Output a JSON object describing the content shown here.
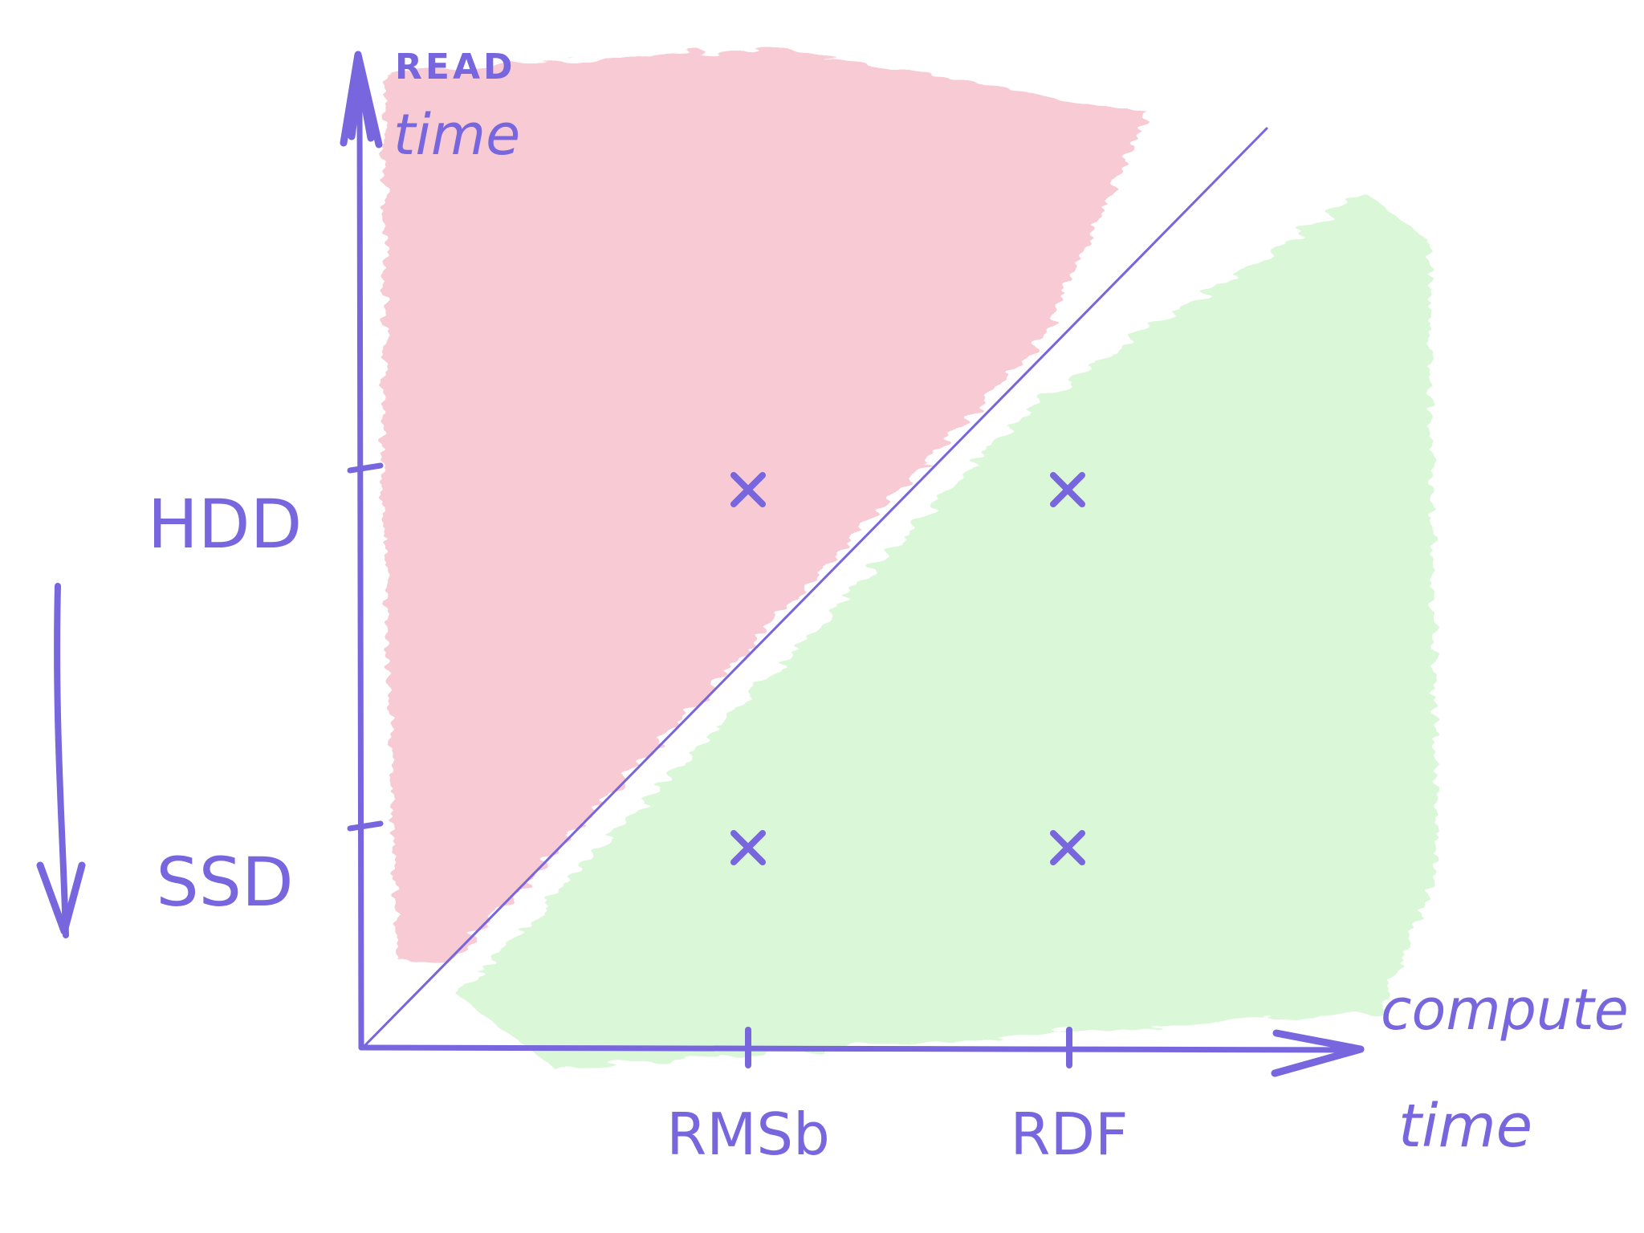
{
  "chart_data": {
    "type": "scatter",
    "title": "",
    "xlabel": [
      "compute",
      "time"
    ],
    "ylabel": [
      "READ",
      "time"
    ],
    "x_categories": [
      "RMSb",
      "RDF"
    ],
    "y_categories": [
      "SSD",
      "HDD"
    ],
    "points": [
      {
        "x": "RMSb",
        "y": "HDD",
        "marker": "x"
      },
      {
        "x": "RDF",
        "y": "HDD",
        "marker": "x"
      },
      {
        "x": "RMSb",
        "y": "SSD",
        "marker": "x"
      },
      {
        "x": "RDF",
        "y": "SSD",
        "marker": "x"
      }
    ],
    "reference_line": "diagonal",
    "regions": [
      {
        "side": "above-diagonal",
        "color": "#f4b6c4"
      },
      {
        "side": "below-diagonal",
        "color": "#cdf5c9"
      }
    ],
    "side_arrow": "down",
    "grid": false,
    "legend": "none"
  },
  "colors": {
    "ink": "#7766dd",
    "pink": "#f4b6c4",
    "green": "#cdf5c9"
  }
}
